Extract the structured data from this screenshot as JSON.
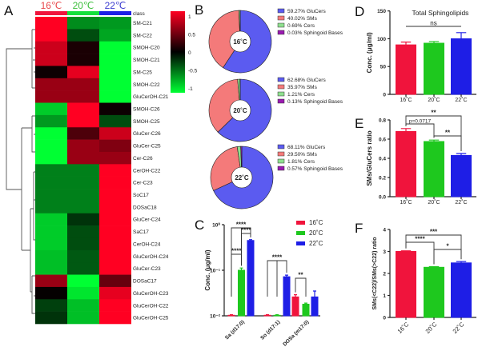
{
  "panels": [
    "A",
    "B",
    "C",
    "D",
    "E",
    "F"
  ],
  "chart_data": [
    {
      "panel": "A",
      "type": "heatmap",
      "columns": [
        "16℃",
        "20℃",
        "22℃"
      ],
      "column_colors": [
        "#e8484c",
        "#3cbf3c",
        "#3c3cd0"
      ],
      "class_label": "class",
      "class_bar_colors": [
        "#f0143c",
        "#14e03c",
        "#1e1ee6"
      ],
      "rows": [
        "SM-C21",
        "SM-C22",
        "SMOH-C20",
        "SMOH-C21",
        "SM-C25",
        "SMOH-C22",
        "GluCerOH-C21",
        "SMOH-C26",
        "SMOH-C25",
        "GluCer-C26",
        "GluCer-C25",
        "Cer-C26",
        "CerOH-C22",
        "Cer-C23",
        "SoC17",
        "DOSaC18",
        "GluCer-C24",
        "SaC17",
        "CerOH-C24",
        "GluCerOH-C24",
        "GluCer-C23",
        "DOSaC17",
        "GluCerOH-C23",
        "GluCerOH-C22",
        "GluCerOH-C25"
      ],
      "values": [
        [
          1,
          -0.55,
          -0.6
        ],
        [
          1,
          -0.3,
          -0.65
        ],
        [
          0.8,
          0.1,
          -1
        ],
        [
          0.8,
          0.1,
          -1
        ],
        [
          0.05,
          0.9,
          -1
        ],
        [
          0.6,
          0.6,
          -1
        ],
        [
          0.6,
          0.6,
          -1
        ],
        [
          -0.8,
          1,
          0.05
        ],
        [
          -0.6,
          1,
          -0.3
        ],
        [
          -1,
          0.3,
          0.8
        ],
        [
          -1,
          0.6,
          0.5
        ],
        [
          -1,
          0.6,
          0.6
        ],
        [
          -0.5,
          -0.5,
          1
        ],
        [
          -0.5,
          -0.5,
          1
        ],
        [
          -0.5,
          -0.5,
          1
        ],
        [
          -0.5,
          -0.5,
          1
        ],
        [
          -0.8,
          -0.2,
          1
        ],
        [
          -0.8,
          -0.3,
          1
        ],
        [
          -0.8,
          -0.3,
          1
        ],
        [
          -0.75,
          -0.35,
          1
        ],
        [
          -0.75,
          -0.35,
          1
        ],
        [
          0.6,
          -1,
          0.4
        ],
        [
          0.02,
          -0.9,
          0.9
        ],
        [
          -0.25,
          -0.75,
          1
        ],
        [
          -0.2,
          -0.75,
          1
        ]
      ],
      "colorbar_ticks": [
        "1",
        "0.5",
        "0",
        "-0.5",
        "-1"
      ],
      "colorscale": {
        "low": "#00ff33",
        "mid": "#000000",
        "high": "#ff0022"
      }
    },
    {
      "panel": "B",
      "type": "pie",
      "slice_colors": {
        "GluCers": "#5b5bf0",
        "SMs": "#f47a7a",
        "Cers": "#8ee08e",
        "Sphingoid Bases": "#9a1ab0"
      },
      "charts": [
        {
          "center_label": "16˚C",
          "slices": [
            {
              "name": "GluCers",
              "value": 59.27,
              "label": "59.27%  GluCers"
            },
            {
              "name": "SMs",
              "value": 40.02,
              "label": "40.02%  SMs"
            },
            {
              "name": "Cers",
              "value": 0.69,
              "label": "0.69%  Cers"
            },
            {
              "name": "Sphingoid Bases",
              "value": 0.03,
              "label": "0.03%  Sphingoid Bases"
            }
          ]
        },
        {
          "center_label": "20˚C",
          "slices": [
            {
              "name": "GluCers",
              "value": 62.68,
              "label": "62.68%  GluCers"
            },
            {
              "name": "SMs",
              "value": 35.97,
              "label": "35.97%  SMs"
            },
            {
              "name": "Cers",
              "value": 1.21,
              "label": "1.21%  Cers"
            },
            {
              "name": "Sphingoid Bases",
              "value": 0.13,
              "label": "0.13%  Sphingoid Bases"
            }
          ]
        },
        {
          "center_label": "22˚C",
          "slices": [
            {
              "name": "GluCers",
              "value": 68.11,
              "label": "68.11%  GluCers"
            },
            {
              "name": "SMs",
              "value": 29.5,
              "label": "29.50%  SMs"
            },
            {
              "name": "Cers",
              "value": 1.81,
              "label": "1.81%  Cers"
            },
            {
              "name": "Sphingoid Bases",
              "value": 0.57,
              "label": "0.57%  Sphingoid Bases"
            }
          ]
        }
      ]
    },
    {
      "panel": "C",
      "type": "bar",
      "yscale": "log",
      "ylim": [
        0.01,
        1
      ],
      "yticks": [
        {
          "value": 1,
          "label": "10⁰"
        },
        {
          "value": 0.1,
          "label": "10⁻¹"
        },
        {
          "value": 0.01,
          "label": "10⁻²"
        }
      ],
      "ylabel": "Conc. (μg/ml)",
      "categories": [
        "Sa (d17:0)",
        "So (d17:1)",
        "DOSa (m17:0)"
      ],
      "legend_position": "top-right",
      "series": [
        {
          "name": "16˚C",
          "color": "#f0143c",
          "values": [
            0.0103,
            0.0103,
            0.026
          ],
          "errors": [
            0.0003,
            0.0003,
            0.003
          ]
        },
        {
          "name": "20˚C",
          "color": "#1ec81e",
          "values": [
            0.1,
            0.0103,
            0.018
          ],
          "errors": [
            0.012,
            0.0003,
            0.001
          ]
        },
        {
          "name": "22˚C",
          "color": "#1e1ee6",
          "values": [
            0.45,
            0.072,
            0.026
          ],
          "errors": [
            0.02,
            0.006,
            0.009
          ]
        }
      ],
      "significance": [
        {
          "category": 0,
          "from": 0,
          "to": 2,
          "label": "****"
        },
        {
          "category": 0,
          "from": 1,
          "to": 2,
          "label": "****"
        },
        {
          "category": 0,
          "from": 0,
          "to": 1,
          "label": "****"
        },
        {
          "category": 1,
          "from": 0,
          "to": 2,
          "label": "****"
        },
        {
          "category": 2,
          "from": 0,
          "to": 1,
          "label": "**"
        }
      ]
    },
    {
      "panel": "D",
      "type": "bar",
      "title": "Total Sphingolipids",
      "ylabel": "Conc. (μg/ml)",
      "ylim": [
        0,
        150
      ],
      "yticks": [
        {
          "value": 0,
          "label": "0"
        },
        {
          "value": 50,
          "label": "50"
        },
        {
          "value": 100,
          "label": "100"
        },
        {
          "value": 150,
          "label": "150"
        }
      ],
      "categories": [
        "16˚C",
        "20˚C",
        "22˚C"
      ],
      "colors": [
        "#f0143c",
        "#1ec81e",
        "#1e1ee6"
      ],
      "values": [
        89,
        92,
        100
      ],
      "errors": [
        5,
        3,
        11
      ],
      "significance": [
        {
          "from": 0,
          "to": 2,
          "label": "ns"
        }
      ]
    },
    {
      "panel": "E",
      "type": "bar",
      "ylabel": "SMs/GluCers ratio",
      "ylim": [
        0,
        0.8
      ],
      "yticks": [
        {
          "value": 0,
          "label": "0.0"
        },
        {
          "value": 0.2,
          "label": "0.2"
        },
        {
          "value": 0.4,
          "label": "0.4"
        },
        {
          "value": 0.6,
          "label": "0.6"
        },
        {
          "value": 0.8,
          "label": "0.8"
        }
      ],
      "categories": [
        "16˚C",
        "20˚C",
        "22˚C"
      ],
      "colors": [
        "#f0143c",
        "#1ec81e",
        "#1e1ee6"
      ],
      "values": [
        0.68,
        0.575,
        0.43
      ],
      "errors": [
        0.03,
        0.015,
        0.02
      ],
      "significance": [
        {
          "from": 0,
          "to": 2,
          "label": "**"
        },
        {
          "from": 0,
          "to": 1,
          "label": "p=0.0717"
        },
        {
          "from": 1,
          "to": 2,
          "label": "**"
        }
      ]
    },
    {
      "panel": "F",
      "type": "bar",
      "ylabel": "SMs(<C22)/SMs(>C22) ratio",
      "ylim": [
        0,
        4
      ],
      "yticks": [
        {
          "value": 0,
          "label": "0"
        },
        {
          "value": 1,
          "label": "1"
        },
        {
          "value": 2,
          "label": "2"
        },
        {
          "value": 3,
          "label": "3"
        },
        {
          "value": 4,
          "label": "4"
        }
      ],
      "categories": [
        "16˚C",
        "20˚C",
        "22˚C"
      ],
      "colors": [
        "#f0143c",
        "#1ec81e",
        "#1e1ee6"
      ],
      "values": [
        3.0,
        2.28,
        2.48
      ],
      "errors": [
        0.03,
        0.03,
        0.06
      ],
      "significance": [
        {
          "from": 0,
          "to": 2,
          "label": "***"
        },
        {
          "from": 0,
          "to": 1,
          "label": "****"
        },
        {
          "from": 1,
          "to": 2,
          "label": "*"
        }
      ]
    }
  ]
}
